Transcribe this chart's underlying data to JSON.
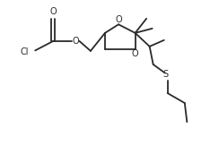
{
  "bg_color": "#ffffff",
  "line_color": "#2a2a2a",
  "line_width": 1.3,
  "font_size": 7.0,
  "xlim": [
    -1.3,
    3.2
  ],
  "ylim": [
    -1.9,
    1.5
  ]
}
